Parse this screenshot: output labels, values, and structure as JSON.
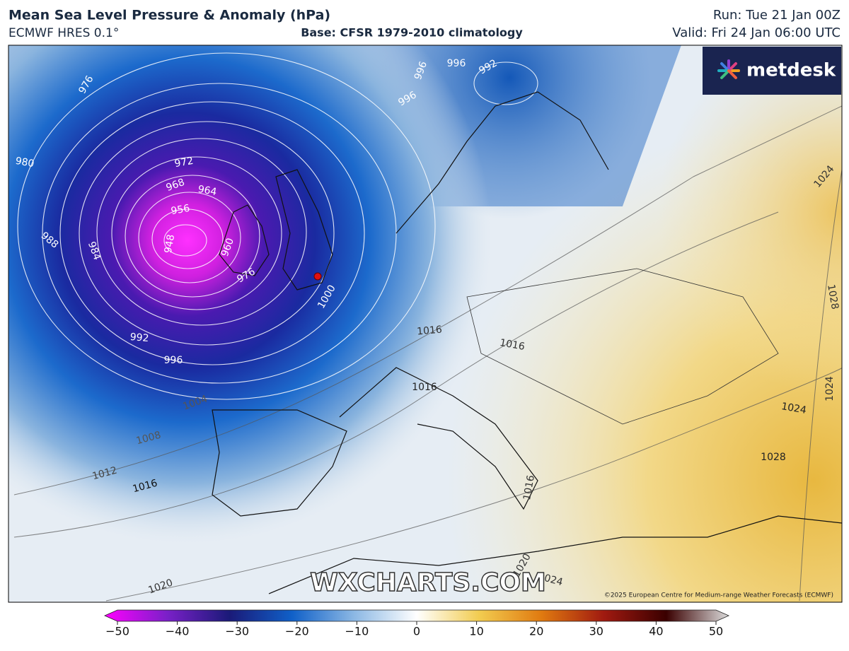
{
  "header": {
    "title": "Mean Sea Level Pressure & Anomaly (hPa)",
    "subtitle": "ECMWF HRES 0.1°",
    "base": "Base: CFSR 1979-2010 climatology",
    "run": "Run: Tue 21 Jan 00Z",
    "valid": "Valid: Fri 24 Jan 06:00 UTC"
  },
  "logo": "metdesk",
  "watermark": "WXCHARTS.COM",
  "copyright": "©2025 European Centre for Medium-range Weather Forecasts (ECMWF)",
  "contour_labels": [
    976,
    980,
    972,
    968,
    964,
    956,
    948,
    960,
    984,
    988,
    976,
    992,
    996,
    1000,
    1004,
    1008,
    1012,
    1016,
    1016,
    1016,
    1016,
    1016,
    1020,
    1020,
    1024,
    1024,
    1028,
    1024,
    1024,
    1028,
    992,
    996,
    996,
    996
  ],
  "colorbar": {
    "ticks": [
      {
        "value": -50,
        "label": "−50"
      },
      {
        "value": -40,
        "label": "−40"
      },
      {
        "value": -30,
        "label": "−30"
      },
      {
        "value": -20,
        "label": "−20"
      },
      {
        "value": -10,
        "label": "−10"
      },
      0,
      10,
      20,
      30,
      40,
      50
    ]
  }
}
